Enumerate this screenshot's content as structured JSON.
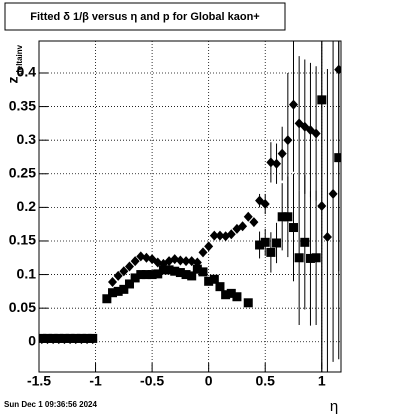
{
  "chart_data": {
    "type": "scatter",
    "title": "Fitted δ 1/β versus η and p for Global kaon+",
    "xlabel": "η",
    "ylabel": "z",
    "ylabel_subscript": "deltainv",
    "footer": "Sun Dec  1 09:36:56 2024",
    "xlim": [
      -1.5,
      1.17
    ],
    "ylim": [
      -0.045,
      0.4476
    ],
    "xticks": [
      -1.5,
      -1,
      -0.5,
      0,
      0.5,
      1
    ],
    "yticks": [
      0,
      0.05,
      0.1,
      0.15,
      0.2,
      0.25,
      0.3,
      0.35,
      0.4
    ],
    "grid": true,
    "series": [
      {
        "marker": "diamond",
        "color": "#000000",
        "x": [
          -1.475,
          -1.425,
          -1.375,
          -1.325,
          -1.275,
          -1.225,
          -1.175,
          -1.125,
          -1.075,
          -1.025,
          -0.85,
          -0.8,
          -0.75,
          -0.7,
          -0.65,
          -0.6,
          -0.55,
          -0.5,
          -0.45,
          -0.4,
          -0.35,
          -0.3,
          -0.25,
          -0.2,
          -0.15,
          -0.1,
          -0.05,
          0,
          0.05,
          0.1,
          0.15,
          0.2,
          0.25,
          0.3,
          0.35,
          0.4,
          0.45,
          0.5,
          0.55,
          0.6,
          0.65,
          0.7,
          0.75,
          0.8,
          0.85,
          0.9,
          0.95,
          1.0,
          1.05,
          1.1,
          1.15
        ],
        "values": [
          0.004,
          0.004,
          0.004,
          0.004,
          0.004,
          0.004,
          0.004,
          0.004,
          0.004,
          0.004,
          0.089,
          0.098,
          0.105,
          0.112,
          0.12,
          0.127,
          0.125,
          0.123,
          0.118,
          0.116,
          0.12,
          0.123,
          0.121,
          0.12,
          0.12,
          0.118,
          0.133,
          0.142,
          0.158,
          0.158,
          0.157,
          0.16,
          0.168,
          0.172,
          0.186,
          0.178,
          0.21,
          0.205,
          0.267,
          0.265,
          0.28,
          0.3,
          0.353,
          0.325,
          0.32,
          0.315,
          0.31,
          0.202,
          0.156,
          0.22,
          0.405
        ],
        "errors": [
          0.003,
          0.003,
          0.003,
          0.003,
          0.003,
          0.003,
          0.003,
          0.003,
          0.003,
          0.003,
          0.003,
          0.003,
          0.003,
          0.003,
          0.003,
          0.003,
          0.003,
          0.003,
          0.003,
          0.003,
          0.003,
          0.003,
          0.003,
          0.003,
          0.003,
          0.003,
          0.003,
          0.003,
          0.003,
          0.003,
          0.003,
          0.003,
          0.003,
          0.003,
          0.003,
          0.003,
          0.01,
          0.015,
          0.03,
          0.03,
          0.04,
          0.1,
          0.1,
          0.1,
          0.1,
          0.1,
          0.1,
          0.25,
          0.25,
          0.25,
          0.3
        ]
      },
      {
        "marker": "square",
        "color": "#000000",
        "x": [
          -1.475,
          -1.425,
          -1.375,
          -1.325,
          -1.275,
          -1.225,
          -1.175,
          -1.125,
          -1.075,
          -1.025,
          -0.9,
          -0.85,
          -0.8,
          -0.75,
          -0.7,
          -0.65,
          -0.6,
          -0.55,
          -0.5,
          -0.45,
          -0.4,
          -0.35,
          -0.3,
          -0.25,
          -0.2,
          -0.15,
          -0.1,
          -0.05,
          0,
          0.05,
          0.1,
          0.15,
          0.2,
          0.25,
          0.35,
          0.45,
          0.5,
          0.55,
          0.6,
          0.65,
          0.7,
          0.75,
          0.8,
          0.85,
          0.9,
          0.95,
          1.0,
          1.15
        ],
        "values": [
          0.005,
          0.005,
          0.005,
          0.005,
          0.005,
          0.005,
          0.005,
          0.005,
          0.005,
          0.005,
          0.064,
          0.073,
          0.075,
          0.078,
          0.086,
          0.095,
          0.1,
          0.1,
          0.1,
          0.101,
          0.107,
          0.107,
          0.105,
          0.103,
          0.1,
          0.098,
          0.108,
          0.104,
          0.09,
          0.093,
          0.082,
          0.07,
          0.072,
          0.067,
          0.058,
          0.144,
          0.148,
          0.133,
          0.147,
          0.186,
          0.186,
          0.17,
          0.125,
          0.148,
          0.124,
          0.125,
          0.36,
          0.274
        ],
        "errors": [
          0.003,
          0.003,
          0.003,
          0.003,
          0.003,
          0.003,
          0.003,
          0.003,
          0.003,
          0.003,
          0.003,
          0.003,
          0.003,
          0.003,
          0.003,
          0.003,
          0.003,
          0.003,
          0.003,
          0.003,
          0.003,
          0.003,
          0.003,
          0.003,
          0.003,
          0.003,
          0.003,
          0.003,
          0.003,
          0.003,
          0.003,
          0.003,
          0.003,
          0.003,
          0.003,
          0.02,
          0.02,
          0.03,
          0.03,
          0.05,
          0.06,
          0.08,
          0.1,
          0.1,
          0.1,
          0.1,
          0.4,
          0.3
        ]
      }
    ]
  }
}
